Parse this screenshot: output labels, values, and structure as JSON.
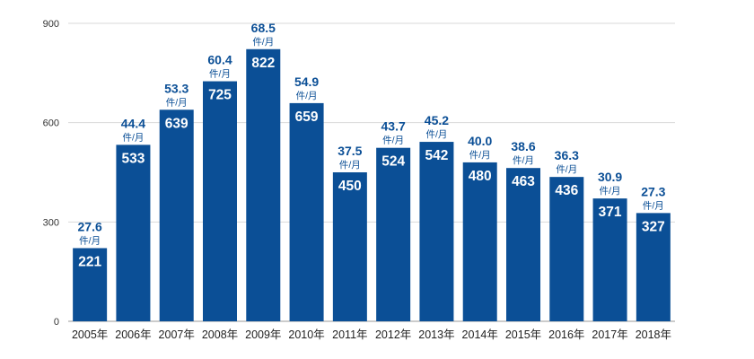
{
  "chart_data": {
    "type": "bar",
    "title": "",
    "xlabel": "",
    "ylabel": "",
    "categories": [
      "2005年",
      "2006年",
      "2007年",
      "2008年",
      "2009年",
      "2010年",
      "2011年",
      "2012年",
      "2013年",
      "2014年",
      "2015年",
      "2016年",
      "2017年",
      "2018年"
    ],
    "values": [
      221,
      533,
      639,
      725,
      822,
      659,
      450,
      524,
      542,
      480,
      463,
      436,
      371,
      327
    ],
    "monthly_values": [
      "27.6",
      "44.4",
      "53.3",
      "60.4",
      "68.5",
      "54.9",
      "37.5",
      "43.7",
      "45.2",
      "40.0",
      "38.6",
      "36.3",
      "30.9",
      "27.3"
    ],
    "monthly_unit": "件/月",
    "ylim": [
      0,
      900
    ],
    "yticks": [
      0,
      300,
      600,
      900
    ],
    "grid": true,
    "bar_color": "#0b4f96",
    "label_color": "#0b4f96"
  }
}
